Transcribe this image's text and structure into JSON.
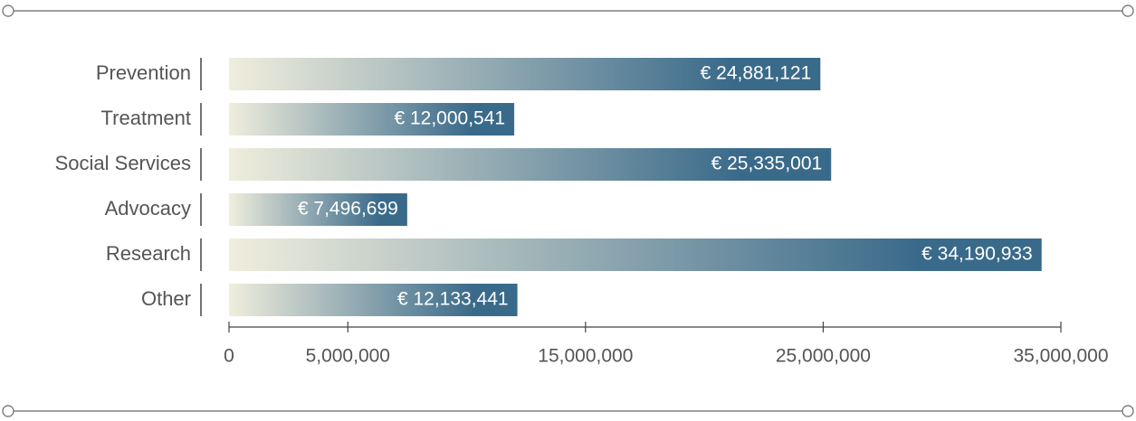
{
  "chart_data": {
    "type": "bar",
    "orientation": "horizontal",
    "categories": [
      "Prevention",
      "Treatment",
      "Social Services",
      "Advocacy",
      "Research",
      "Other"
    ],
    "values": [
      24881121,
      12000541,
      25335001,
      7496699,
      34190933,
      12133441
    ],
    "value_labels": [
      "€ 24,881,121",
      "€ 12,000,541",
      "€ 25,335,001",
      "€ 7,496,699",
      "€ 34,190,933",
      "€ 12,133,441"
    ],
    "color": [
      "#f0eedd",
      "#3a6a8a"
    ],
    "xlim": [
      0,
      35000000
    ],
    "xticks": [
      0,
      {
        "value": 5000000,
        "label": "5,000,000"
      },
      {
        "value": 15000000,
        "label": "15,000,000"
      },
      {
        "value": 25000000,
        "label": "25,000,000"
      },
      {
        "value": 35000000,
        "label": "35,000,000"
      }
    ]
  }
}
